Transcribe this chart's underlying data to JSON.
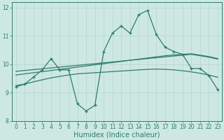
{
  "x": [
    0,
    1,
    2,
    3,
    4,
    5,
    6,
    7,
    8,
    9,
    10,
    11,
    12,
    13,
    14,
    15,
    16,
    17,
    18,
    19,
    20,
    21,
    22,
    23
  ],
  "line1": [
    9.2,
    9.3,
    9.55,
    9.8,
    10.2,
    9.8,
    9.8,
    8.6,
    8.35,
    8.55,
    10.45,
    11.1,
    11.35,
    11.1,
    11.75,
    11.9,
    11.05,
    10.6,
    10.45,
    10.35,
    9.85,
    9.85,
    9.6,
    9.1
  ],
  "trend1": [
    9.75,
    9.78,
    9.81,
    9.84,
    9.87,
    9.9,
    9.93,
    9.96,
    9.99,
    10.02,
    10.05,
    10.08,
    10.11,
    10.14,
    10.17,
    10.2,
    10.23,
    10.26,
    10.29,
    10.32,
    10.35,
    10.3,
    10.25,
    10.18
  ],
  "trend2": [
    9.62,
    9.66,
    9.7,
    9.74,
    9.78,
    9.82,
    9.86,
    9.9,
    9.94,
    9.98,
    10.02,
    10.06,
    10.1,
    10.14,
    10.18,
    10.22,
    10.26,
    10.3,
    10.33,
    10.35,
    10.37,
    10.32,
    10.27,
    10.2
  ],
  "trend3": [
    9.25,
    9.3,
    9.38,
    9.45,
    9.52,
    9.57,
    9.62,
    9.66,
    9.68,
    9.7,
    9.72,
    9.74,
    9.76,
    9.78,
    9.8,
    9.82,
    9.83,
    9.82,
    9.8,
    9.77,
    9.73,
    9.68,
    9.62,
    9.54
  ],
  "line_color": "#2e7d6e",
  "bg_color": "#cde8e2",
  "grid_color": "#b8d4ce",
  "xlabel": "Humidex (Indice chaleur)",
  "ylim": [
    8.0,
    12.2
  ],
  "xlim": [
    -0.5,
    23.5
  ],
  "yticks": [
    8,
    9,
    10,
    11,
    12
  ],
  "xticks": [
    0,
    1,
    2,
    3,
    4,
    5,
    6,
    7,
    8,
    9,
    10,
    11,
    12,
    13,
    14,
    15,
    16,
    17,
    18,
    19,
    20,
    21,
    22,
    23
  ],
  "xtick_labels": [
    "0",
    "1",
    "2",
    "3",
    "4",
    "5",
    "6",
    "7",
    "8",
    "9",
    "10",
    "11",
    "12",
    "13",
    "14",
    "15",
    "16",
    "17",
    "18",
    "19",
    "20",
    "21",
    "22",
    "23"
  ],
  "tick_fontsize": 5.5,
  "label_fontsize": 7.0,
  "marker": "+",
  "markersize": 3.5,
  "linewidth": 0.9
}
